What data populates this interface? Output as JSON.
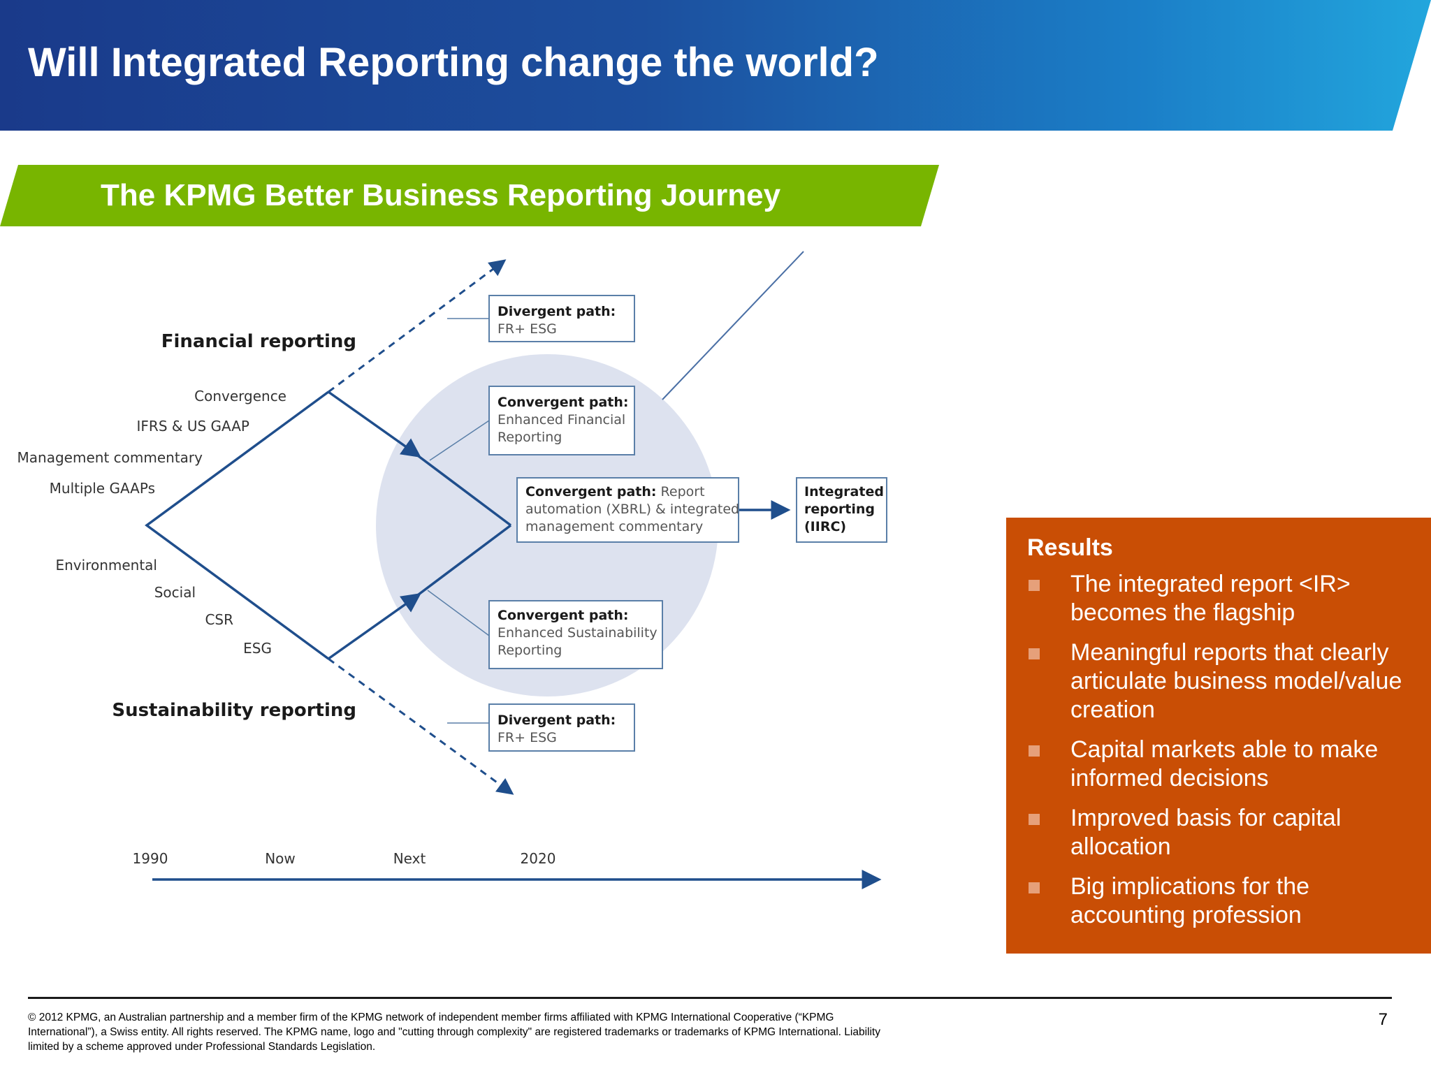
{
  "header": {
    "title": "Will Integrated Reporting change the world?"
  },
  "banner": {
    "title": "The KPMG Better Business Reporting Journey"
  },
  "diagram": {
    "financial_label": "Financial reporting",
    "sustainability_label": "Sustainability reporting",
    "financial_items": [
      "Convergence",
      "IFRS & US GAAP",
      "Management commentary",
      "Multiple GAAPs"
    ],
    "sustainability_items": [
      "Environmental",
      "Social",
      "CSR",
      "ESG"
    ],
    "boxes": {
      "divergent_top": {
        "title": "Divergent path:",
        "lines": [
          "FR+ ESG"
        ]
      },
      "convergent_financial": {
        "title": "Convergent path:",
        "lines": [
          "Enhanced Financial",
          "Reporting"
        ]
      },
      "convergent_report": {
        "title": "Convergent path:",
        "title_rest": " Report",
        "lines": [
          "automation (XBRL) & integrated",
          "management commentary"
        ]
      },
      "integrated": {
        "lines": [
          "Integrated",
          "reporting",
          "(IIRC)"
        ]
      },
      "convergent_sustainability": {
        "title": "Convergent path:",
        "lines": [
          "Enhanced Sustainability",
          "Reporting"
        ]
      },
      "divergent_bottom": {
        "title": "Divergent path:",
        "lines": [
          "FR+ ESG"
        ]
      }
    },
    "timeline": [
      "1990",
      "Now",
      "Next",
      "2020"
    ],
    "colors": {
      "line": "#1f4e8c",
      "circle": "#dde2ef",
      "box_border": "#5a7fa8",
      "text": "#333333"
    }
  },
  "results": {
    "title": "Results",
    "items": [
      "The integrated report <IR> becomes the flagship",
      "Meaningful reports that clearly articulate business model/value creation",
      "Capital markets able to make informed decisions",
      "Improved basis for capital allocation",
      "Big implications for the accounting profession"
    ]
  },
  "footer": {
    "text": "© 2012 KPMG, an Australian partnership and a member firm of the KPMG network of independent member firms affiliated with KPMG International Cooperative (“KPMG International”), a Swiss entity. All rights reserved. The KPMG name, logo and \"cutting through complexity\" are registered trademarks or trademarks of KPMG International. Liability limited by a scheme approved under Professional Standards Legislation.",
    "page_number": "7"
  }
}
